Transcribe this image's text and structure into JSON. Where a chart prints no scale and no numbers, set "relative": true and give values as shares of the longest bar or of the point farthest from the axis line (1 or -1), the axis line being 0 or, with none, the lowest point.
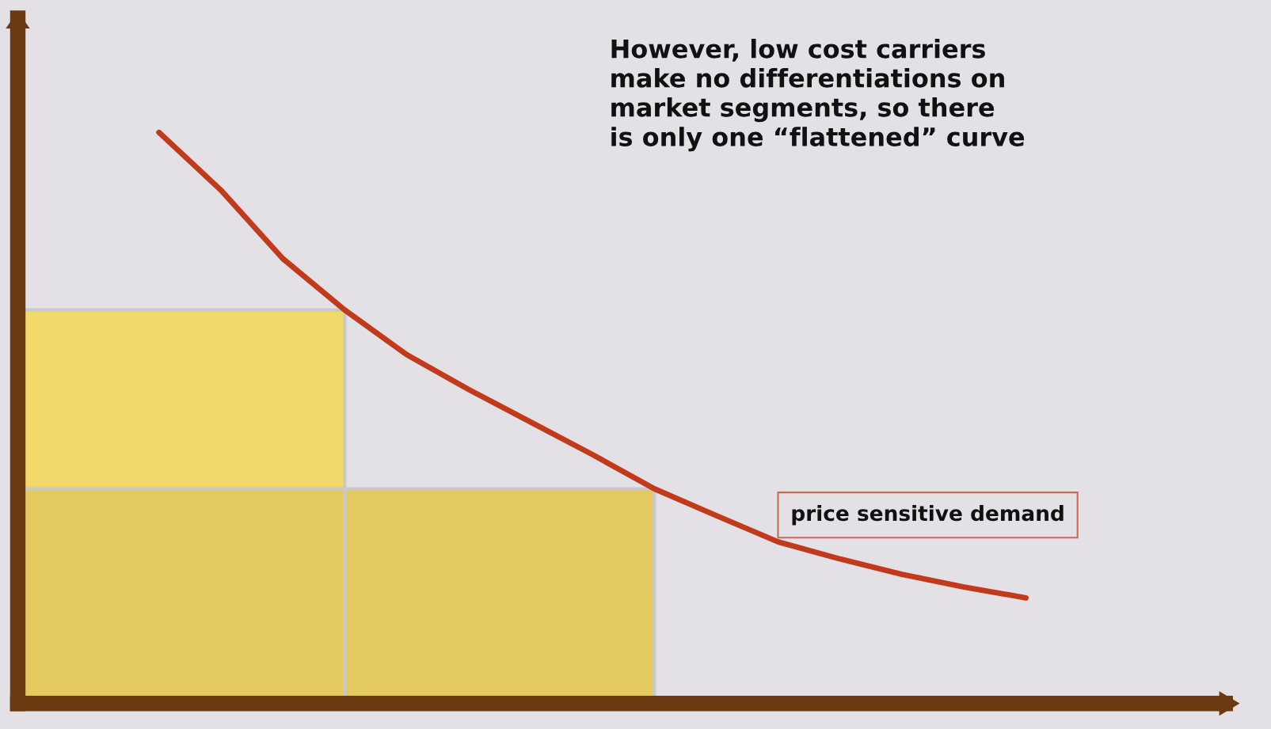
{
  "chart_data": {
    "type": "line",
    "relative": true,
    "tick_labels": false,
    "legend": false,
    "categories": [
      null,
      null,
      null,
      null,
      null,
      null,
      null,
      null,
      null,
      null,
      null,
      null,
      null,
      null,
      null
    ],
    "annotations": [
      "However, low cost carriers\nmake no differentiations on\nmarket segments, so there\nis only one “flattened” curve"
    ],
    "series": [
      {
        "name": "price sensitive demand",
        "color": "#c23a1c",
        "values": [
          1,
          0.899,
          0.779,
          0.689,
          0.611,
          0.55,
          0.493,
          0.436,
          0.376,
          0.329,
          0.283,
          0.253,
          0.226,
          0.204,
          0.185
        ]
      }
    ]
  }
}
